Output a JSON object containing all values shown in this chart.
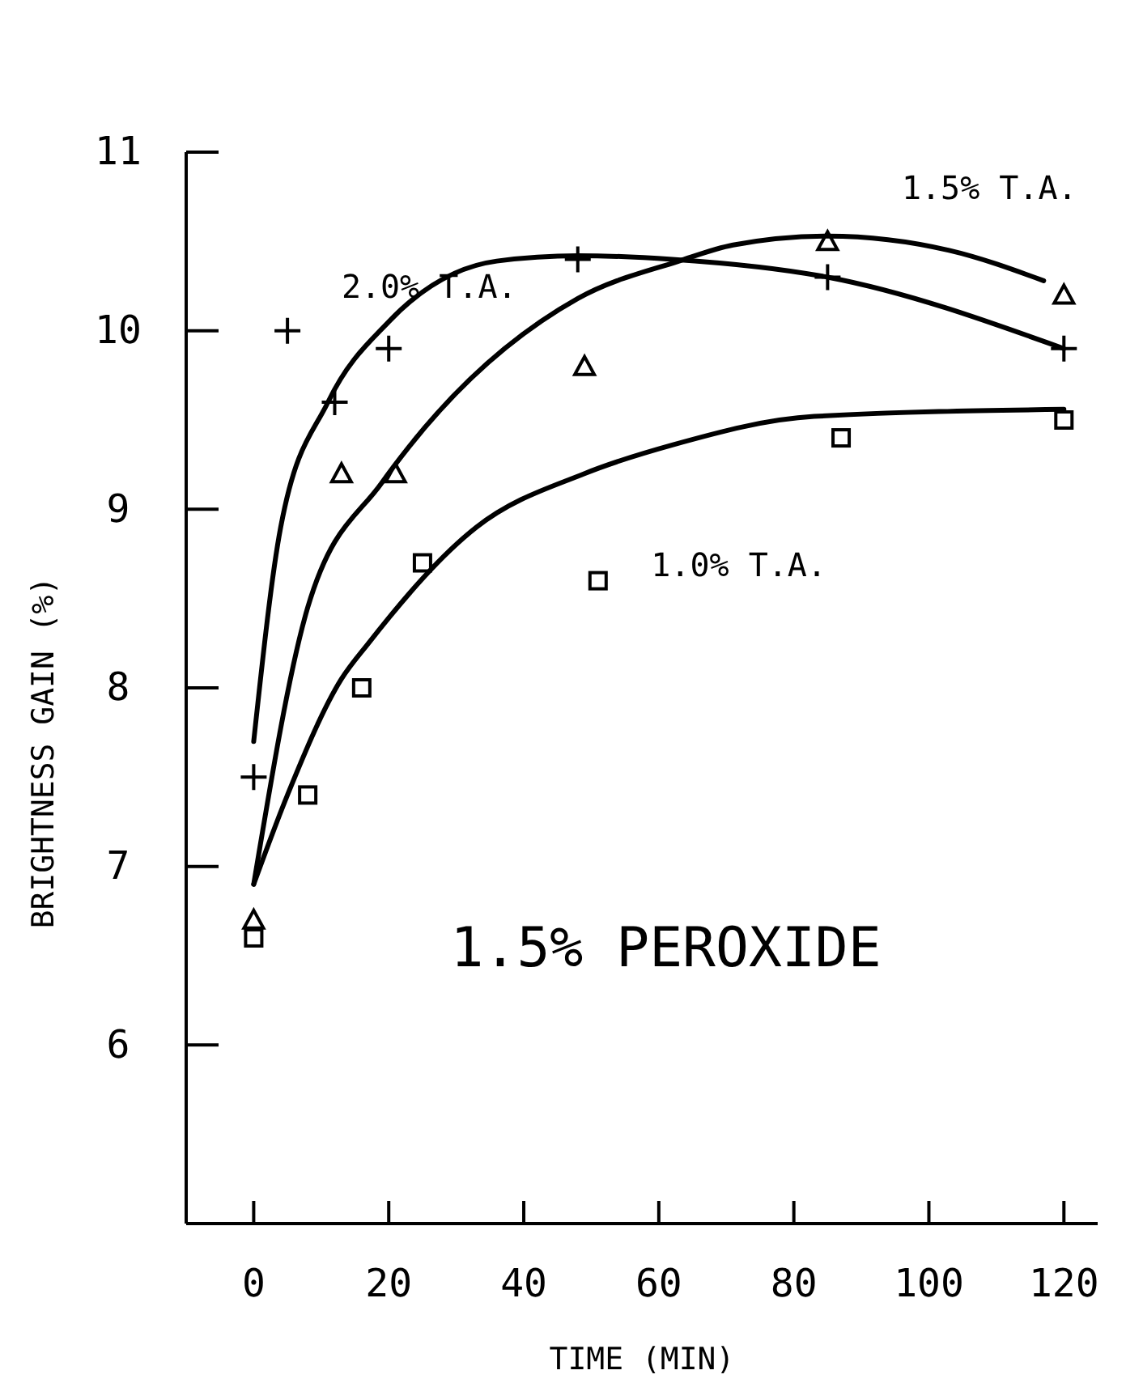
{
  "chart_data": {
    "type": "scatter",
    "xlabel": "TIME (MIN)",
    "ylabel": "BRIGHTNESS GAIN (%)",
    "xlim": [
      -10,
      125
    ],
    "ylim": [
      5,
      11
    ],
    "xticks": [
      0,
      20,
      40,
      60,
      80,
      100,
      120
    ],
    "yticks": [
      6,
      7,
      8,
      9,
      10,
      11
    ],
    "grid": false,
    "series": [
      {
        "marker": "cross",
        "color": "#000000",
        "x": [
          0,
          5,
          12,
          20,
          48,
          85,
          120
        ],
        "values": [
          7.5,
          10.0,
          9.6,
          9.9,
          10.4,
          10.3,
          9.9
        ]
      },
      {
        "marker": "triangle",
        "color": "#000000",
        "x": [
          0,
          13,
          21,
          49,
          85,
          120
        ],
        "values": [
          6.7,
          9.2,
          9.2,
          9.8,
          10.5,
          10.2
        ]
      },
      {
        "marker": "square",
        "color": "#000000",
        "x": [
          0,
          8,
          16,
          25,
          51,
          87,
          120
        ],
        "values": [
          6.6,
          7.4,
          8.0,
          8.7,
          8.6,
          9.4,
          9.5
        ]
      },
      {
        "type": "line",
        "marker": "none",
        "line_style": "solid",
        "color": "#000000",
        "x": [
          0,
          4,
          11,
          20,
          36,
          48,
          62,
          85,
          120
        ],
        "values": [
          7.7,
          8.9,
          9.6,
          10.05,
          10.39,
          10.42,
          10.4,
          10.3,
          9.9
        ]
      },
      {
        "type": "line",
        "marker": "none",
        "line_style": "solid",
        "color": "#000000",
        "x": [
          0,
          8,
          19,
          23,
          48,
          63,
          71,
          85,
          103,
          117
        ],
        "values": [
          6.9,
          8.45,
          9.15,
          9.35,
          10.18,
          10.39,
          10.48,
          10.53,
          10.45,
          10.28
        ]
      },
      {
        "type": "line",
        "marker": "none",
        "line_style": "solid",
        "color": "#000000",
        "x": [
          0,
          5,
          13,
          17,
          33,
          49,
          62,
          83,
          120
        ],
        "values": [
          6.9,
          7.4,
          8.05,
          8.25,
          8.9,
          9.2,
          9.36,
          9.52,
          9.56
        ]
      }
    ],
    "annotations": [
      {
        "text": "2.0% T.A.",
        "x": 26,
        "y": 10.25
      },
      "1.5% T.A.",
      "1.0% T.A.",
      "1.5% PEROXIDE"
    ]
  }
}
